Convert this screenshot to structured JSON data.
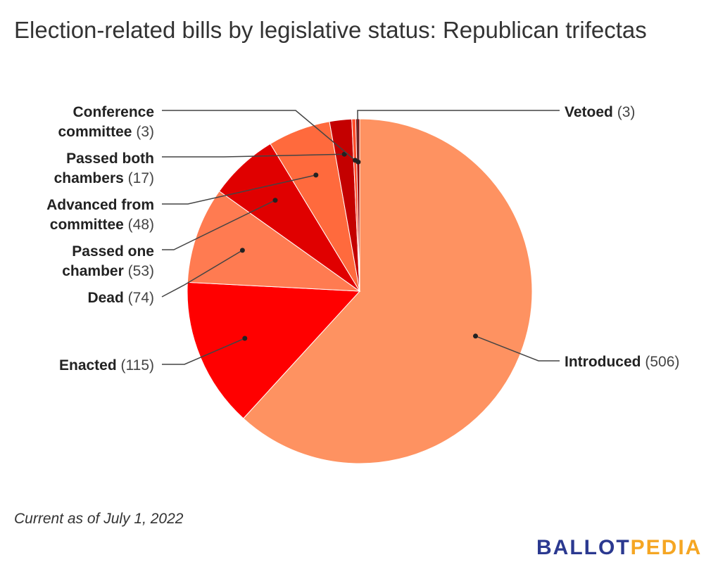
{
  "title": "Election-related bills by legislative status: Republican trifectas",
  "footnote": "Current as of July 1, 2022",
  "logo": {
    "part1": "BALLOT",
    "part2": "PEDIA",
    "color1": "#2b3990",
    "color2": "#f5a623"
  },
  "chart_data": {
    "type": "pie",
    "title": "Election-related bills by legislative status: Republican trifectas",
    "slices": [
      {
        "label": "Introduced",
        "value": 506,
        "color": "#fe9261",
        "count_text": "(506)"
      },
      {
        "label": "Enacted",
        "value": 115,
        "color": "#ff0000",
        "count_text": "(115)"
      },
      {
        "label": "Dead",
        "value": 74,
        "color": "#ff7b51",
        "count_text": "(74)"
      },
      {
        "label": "Passed one chamber",
        "value": 53,
        "color": "#e00000",
        "count_text": "(53)"
      },
      {
        "label": "Advanced from committee",
        "value": 48,
        "color": "#ff6a3d",
        "count_text": "(48)"
      },
      {
        "label": "Passed both chambers",
        "value": 17,
        "color": "#c40000",
        "count_text": "(17)"
      },
      {
        "label": "Conference committee",
        "value": 3,
        "color": "#ff4d2b",
        "count_text": "(3)"
      },
      {
        "label": "Vetoed",
        "value": 3,
        "color": "#990000",
        "count_text": "(3)"
      }
    ],
    "labels": {
      "introduced": {
        "name": "Introduced",
        "count": "(506)"
      },
      "enacted": {
        "name": "Enacted",
        "count": "(115)"
      },
      "dead": {
        "name": "Dead",
        "count": "(74)"
      },
      "passed_one": {
        "line1": "Passed one",
        "line2": "chamber",
        "count": "(53)"
      },
      "advanced": {
        "line1": "Advanced from",
        "line2": "committee",
        "count": "(48)"
      },
      "passed_both": {
        "line1": "Passed both",
        "line2": "chambers",
        "count": "(17)"
      },
      "conference": {
        "line1": "Conference",
        "line2": "committee",
        "count": "(3)"
      },
      "vetoed": {
        "name": "Vetoed",
        "count": "(3)"
      }
    }
  }
}
